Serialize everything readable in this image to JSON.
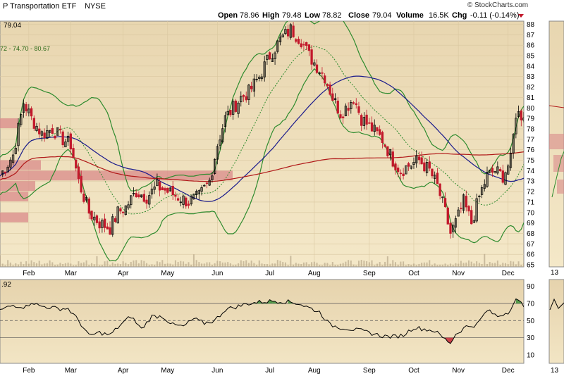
{
  "header": {
    "title": "P Transportation ETF",
    "exchange": "NYSE",
    "watermark": "© StockCharts.com",
    "open_label": "Open",
    "open": "78.96",
    "high_label": "High",
    "high": "79.48",
    "low_label": "Low",
    "low": "78.82",
    "close_label": "Close",
    "close": "79.04",
    "volume_label": "Volume",
    "volume": "16.5K",
    "chg_label": "Chg",
    "chg": "-0.11 (-0.14%)",
    "last_price": "79.04",
    "bb_legend": "72 - 74.70 - 80.67",
    "rsi_value": ".92",
    "right_panel_label": "13"
  },
  "colors": {
    "panel_bg_top": "#e9d9b6",
    "panel_bg_bottom": "#f2e6c6",
    "up_candle": "#000000",
    "down_candle": "#c2182b",
    "bollinger": "#2e8b2e",
    "sma_fast": "#1a1a8c",
    "sma_slow": "#b01818",
    "volume_by_price": "#d98a8a",
    "rsi_line": "#000000",
    "rsi_fill_high": "#2e8b2e",
    "rsi_fill_low": "#c2182b",
    "chg_negative": "#c2182b"
  },
  "chart_data": [
    {
      "type": "candlestick",
      "x_labels": [
        "Feb",
        "Mar",
        "Apr",
        "May",
        "Jun",
        "Jul",
        "Aug",
        "Sep",
        "Oct",
        "Nov",
        "Dec"
      ],
      "y_ticks": [
        65,
        66,
        67,
        68,
        69,
        70,
        71,
        72,
        73,
        74,
        75,
        76,
        77,
        78,
        79,
        80,
        81,
        82,
        83,
        84,
        85,
        86,
        87,
        88
      ],
      "ylim": [
        64.8,
        88.3
      ],
      "close_path": [
        [
          0,
          73.5
        ],
        [
          5,
          75.5
        ],
        [
          9,
          80.5
        ],
        [
          12,
          79
        ],
        [
          16,
          77.5
        ],
        [
          20,
          78
        ],
        [
          24,
          77
        ],
        [
          27,
          76.5
        ],
        [
          30,
          73
        ],
        [
          34,
          70
        ],
        [
          38,
          69
        ],
        [
          42,
          68.5
        ],
        [
          45,
          70
        ],
        [
          48,
          70.5
        ],
        [
          52,
          72
        ],
        [
          56,
          71.5
        ],
        [
          60,
          72.5
        ],
        [
          64,
          72
        ],
        [
          68,
          71.5
        ],
        [
          72,
          71
        ],
        [
          76,
          71.5
        ],
        [
          80,
          73
        ],
        [
          83,
          76.5
        ],
        [
          86,
          79
        ],
        [
          89,
          80
        ],
        [
          92,
          81
        ],
        [
          95,
          81.5
        ],
        [
          99,
          83
        ],
        [
          103,
          85
        ],
        [
          107,
          86.5
        ],
        [
          111,
          87.5
        ],
        [
          115,
          86.5
        ],
        [
          118,
          85
        ],
        [
          121,
          84
        ],
        [
          124,
          83
        ],
        [
          127,
          81
        ],
        [
          130,
          79.5
        ],
        [
          132,
          80
        ],
        [
          135,
          81
        ],
        [
          138,
          79
        ],
        [
          142,
          78
        ],
        [
          146,
          77
        ],
        [
          150,
          75
        ],
        [
          153,
          74
        ],
        [
          156,
          74.5
        ],
        [
          160,
          75
        ],
        [
          164,
          74
        ],
        [
          167,
          72.5
        ],
        [
          170,
          70
        ],
        [
          172,
          68
        ],
        [
          174,
          69
        ],
        [
          177,
          71
        ],
        [
          180,
          69
        ],
        [
          183,
          71.5
        ],
        [
          186,
          73.5
        ],
        [
          189,
          74
        ],
        [
          192,
          73.5
        ],
        [
          195,
          75
        ],
        [
          197,
          79.5
        ],
        [
          200,
          79.2
        ]
      ],
      "indicators": [
        "Bollinger Bands (20,2)",
        "SMA 50",
        "SMA 200",
        "Volume by Price"
      ]
    },
    {
      "type": "line",
      "name": "RSI",
      "y_ticks": [
        10,
        30,
        50,
        70,
        90
      ],
      "ylim": [
        0,
        98
      ],
      "reference_lines": [
        30,
        50,
        70
      ],
      "values": [
        [
          0,
          62
        ],
        [
          5,
          68
        ],
        [
          10,
          66
        ],
        [
          12,
          72
        ],
        [
          15,
          67
        ],
        [
          18,
          66
        ],
        [
          22,
          64
        ],
        [
          26,
          64
        ],
        [
          30,
          50
        ],
        [
          34,
          32
        ],
        [
          38,
          36
        ],
        [
          42,
          33
        ],
        [
          46,
          45
        ],
        [
          50,
          55
        ],
        [
          54,
          40
        ],
        [
          58,
          55
        ],
        [
          62,
          55
        ],
        [
          66,
          45
        ],
        [
          70,
          43
        ],
        [
          74,
          52
        ],
        [
          78,
          47
        ],
        [
          82,
          50
        ],
        [
          86,
          63
        ],
        [
          90,
          66
        ],
        [
          95,
          70
        ],
        [
          100,
          72
        ],
        [
          105,
          73
        ],
        [
          110,
          72
        ],
        [
          114,
          70
        ],
        [
          118,
          65
        ],
        [
          122,
          60
        ],
        [
          126,
          45
        ],
        [
          130,
          42
        ],
        [
          134,
          40
        ],
        [
          138,
          38
        ],
        [
          142,
          35
        ],
        [
          146,
          32
        ],
        [
          150,
          31
        ],
        [
          154,
          33
        ],
        [
          158,
          42
        ],
        [
          162,
          40
        ],
        [
          166,
          38
        ],
        [
          170,
          28
        ],
        [
          172,
          24
        ],
        [
          174,
          34
        ],
        [
          178,
          43
        ],
        [
          182,
          45
        ],
        [
          186,
          62
        ],
        [
          190,
          55
        ],
        [
          194,
          60
        ],
        [
          197,
          74
        ],
        [
          200,
          68
        ]
      ]
    }
  ]
}
